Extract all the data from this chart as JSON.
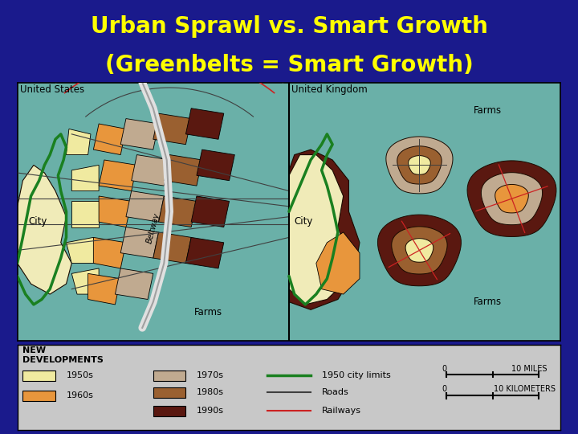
{
  "title_line1": "Urban Sprawl vs. Smart Growth",
  "title_line2": "(Greenbelts = Smart Growth)",
  "title_color": "#FFFF00",
  "background_color": "#1a1a8c",
  "map_bg_color": "#6ab0a8",
  "legend_bg_color": "#c8c8c8",
  "left_label": "United States",
  "right_label": "United Kingdom",
  "left_city_label": "City",
  "right_city_label": "City",
  "farms_label_left": "Farms",
  "farms_label_right_top": "Farms",
  "farms_label_right_bottom": "Farms",
  "beltway_label": "Beltway",
  "legend_new_dev": "NEW\nDEVELOPMENTS",
  "colors": {
    "c1950": "#f0eaA0",
    "c1960": "#e8963c",
    "c1970": "#c0aa90",
    "c1980": "#9a6030",
    "c1990": "#5a1810",
    "greenbelt": "#1a8020",
    "road": "#404040",
    "railway": "#cc2222",
    "beltway_fill": "#e0e0e0",
    "beltway_edge": "#a0a0a0",
    "city_fill": "#f0ebb8",
    "dark_border": "#1a0a00"
  },
  "legend_items": [
    {
      "label": "1950s",
      "color_key": "c1950"
    },
    {
      "label": "1960s",
      "color_key": "c1960"
    },
    {
      "label": "1970s",
      "color_key": "c1970"
    },
    {
      "label": "1980s",
      "color_key": "c1980"
    },
    {
      "label": "1990s",
      "color_key": "c1990"
    }
  ],
  "legend_lines": [
    {
      "label": "1950 city limits",
      "color_key": "greenbelt",
      "lw": 2.5
    },
    {
      "label": "Roads",
      "color_key": "road",
      "lw": 1.5
    },
    {
      "label": "Railways",
      "color_key": "railway",
      "lw": 1.5
    }
  ]
}
